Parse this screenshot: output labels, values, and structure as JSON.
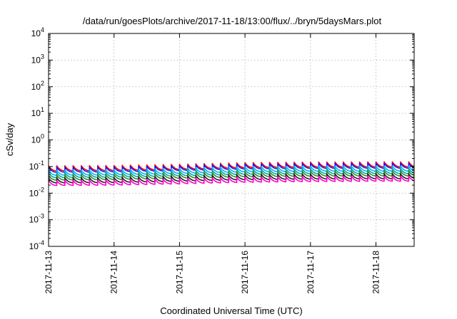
{
  "chart_data": {
    "type": "line",
    "title": "/data/run/goesPlots/archive/2017-11-18/13:00/flux/../bryn/5daysMars.plot",
    "xlabel": "Coordinated Universal Time (UTC)",
    "ylabel": "cSv/day",
    "yscale": "log",
    "ylim": [
      0.0001,
      10000
    ],
    "xlim": [
      "2017-11-13",
      "2017-11-18 14:00"
    ],
    "grid": true,
    "legend": "none",
    "x_ticks": [
      "2017-11-13",
      "2017-11-14",
      "2017-11-15",
      "2017-11-16",
      "2017-11-17",
      "2017-11-18"
    ],
    "y_ticks": [
      {
        "value": 0.0001,
        "base": "10",
        "exp": "-4"
      },
      {
        "value": 0.001,
        "base": "10",
        "exp": "-3"
      },
      {
        "value": 0.01,
        "base": "10",
        "exp": "-2"
      },
      {
        "value": 0.1,
        "base": "10",
        "exp": "-1"
      },
      {
        "value": 1,
        "base": "10",
        "exp": "0"
      },
      {
        "value": 10,
        "base": "10",
        "exp": "1"
      },
      {
        "value": 100,
        "base": "10",
        "exp": "2"
      },
      {
        "value": 1000,
        "base": "10",
        "exp": "3"
      },
      {
        "value": 10000,
        "base": "10",
        "exp": "4"
      }
    ],
    "sawtooth_period_hours": 3,
    "series": [
      {
        "color": "#ff0000",
        "baseline": [
          0.085,
          0.088,
          0.097,
          0.112,
          0.118,
          0.12
        ]
      },
      {
        "color": "#1a1aff",
        "baseline": [
          0.075,
          0.078,
          0.087,
          0.1,
          0.105,
          0.107
        ]
      },
      {
        "color": "#00b0ff",
        "baseline": [
          0.058,
          0.06,
          0.068,
          0.078,
          0.082,
          0.083
        ]
      },
      {
        "color": "#00a8a0",
        "baseline": [
          0.047,
          0.049,
          0.055,
          0.063,
          0.066,
          0.067
        ]
      },
      {
        "color": "#2a8a2a",
        "baseline": [
          0.038,
          0.04,
          0.045,
          0.051,
          0.054,
          0.055
        ]
      },
      {
        "color": "#202020",
        "baseline": [
          0.03,
          0.031,
          0.035,
          0.04,
          0.042,
          0.043
        ]
      },
      {
        "color": "#ff00cc",
        "baseline": [
          0.024,
          0.025,
          0.028,
          0.032,
          0.034,
          0.035
        ]
      }
    ]
  }
}
